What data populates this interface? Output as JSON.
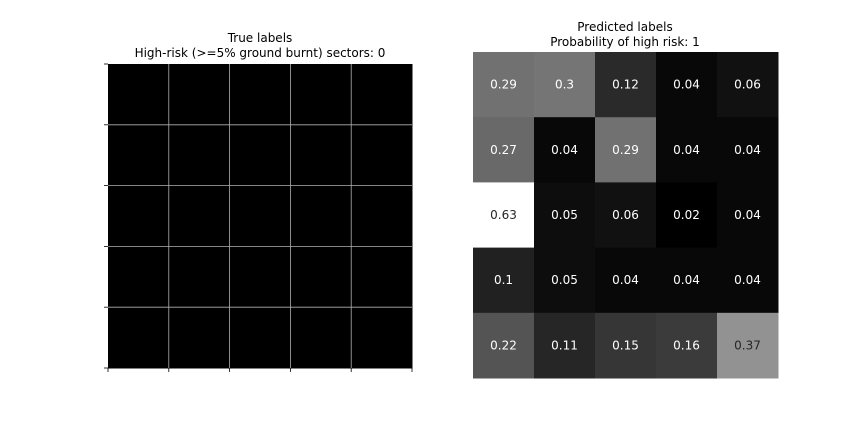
{
  "chart_data": [
    {
      "type": "heatmap",
      "title": "True labels",
      "subtitle": "High-risk (>=5% ground burnt) sectors: 0",
      "rows": 5,
      "cols": 5,
      "values": [
        [
          0,
          0,
          0,
          0,
          0
        ],
        [
          0,
          0,
          0,
          0,
          0
        ],
        [
          0,
          0,
          0,
          0,
          0
        ],
        [
          0,
          0,
          0,
          0,
          0
        ],
        [
          0,
          0,
          0,
          0,
          0
        ]
      ],
      "colormap": "gray",
      "vmin": 0,
      "vmax": 1,
      "grid": true,
      "grid_color": "#b0b0b0",
      "show_values": false
    },
    {
      "type": "heatmap",
      "title": "Predicted labels",
      "subtitle": "Probability of high risk: 1",
      "rows": 5,
      "cols": 5,
      "values": [
        [
          0.29,
          0.3,
          0.12,
          0.04,
          0.06
        ],
        [
          0.27,
          0.04,
          0.29,
          0.04,
          0.04
        ],
        [
          0.63,
          0.05,
          0.06,
          0.02,
          0.04
        ],
        [
          0.1,
          0.05,
          0.04,
          0.04,
          0.04
        ],
        [
          0.22,
          0.11,
          0.15,
          0.16,
          0.37
        ]
      ],
      "colormap": "gray",
      "grid": false,
      "show_values": true
    }
  ]
}
